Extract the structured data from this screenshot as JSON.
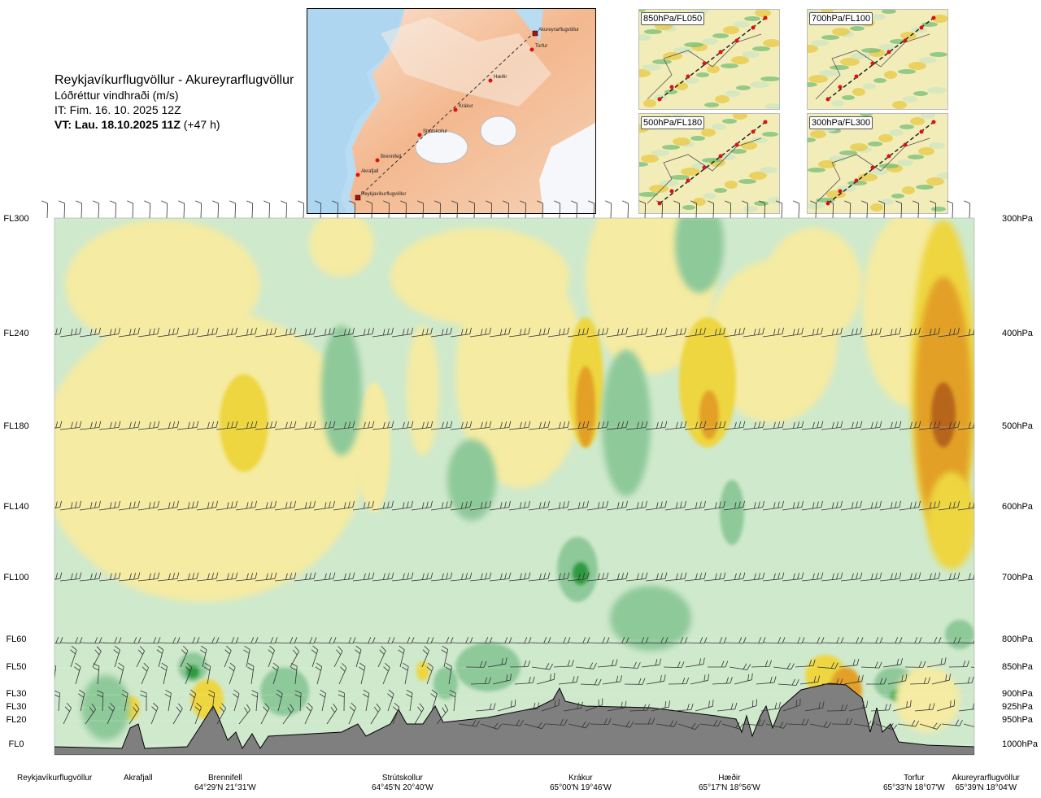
{
  "header": {
    "route": "Reykjavíkurflugvöllur - Akureyrarflugvöllur",
    "variable": "Lóðréttur vindhraði (m/s)",
    "issue_time": "IT: Fim. 16. 10. 2025 12Z",
    "valid_time": "VT: Lau. 18.10.2025 11Z",
    "lead_time": "(+47 h)"
  },
  "map": {
    "waypoints": [
      "Akureyrarflugvöllur",
      "Torfur",
      "Hæðir",
      "Krákur",
      "Strútskollur",
      "Brennifell",
      "Akrafjall",
      "Reykjavíkurflugvöllur"
    ]
  },
  "thumbnails": [
    {
      "label": "850hPa/FL050"
    },
    {
      "label": "700hPa/FL100"
    },
    {
      "label": "500hPa/FL180"
    },
    {
      "label": "300hPa/FL300"
    }
  ],
  "chart_data": {
    "type": "heatmap",
    "title": "Reykjavíkurflugvöllur - Akureyrarflugvöllur",
    "subtitle": "Lóðréttur vindhraði (m/s)",
    "left_axis_ticks": [
      "FL300",
      "FL240",
      "FL180",
      "FL140",
      "FL100",
      "FL60",
      "FL50",
      "FL30",
      "FL30",
      "FL20",
      "FL0"
    ],
    "right_axis_ticks": [
      "300hPa",
      "400hPa",
      "500hPa",
      "600hPa",
      "700hPa",
      "800hPa",
      "850hPa",
      "900hPa",
      "925hPa",
      "950hPa",
      "1000hPa"
    ],
    "pressure_levels": [
      300,
      400,
      500,
      600,
      700,
      800,
      850,
      900,
      925,
      950,
      1000
    ],
    "stations": [
      {
        "name": "Reykjavíkurflugvöllur",
        "coord": ""
      },
      {
        "name": "Akrafjall",
        "coord": ""
      },
      {
        "name": "Brennifell",
        "coord": "64°29'N 21°31'W"
      },
      {
        "name": "Strútskollur",
        "coord": "64°45'N 20°40'W"
      },
      {
        "name": "Krákur",
        "coord": "65°00'N 19°46'W"
      },
      {
        "name": "Hæðir",
        "coord": "65°17'N 18°56'W"
      },
      {
        "name": "Torfur",
        "coord": "65°33'N 18°07'W"
      },
      {
        "name": "Akureyrarflugvöllur",
        "coord": "65°39'N 18°04'W"
      }
    ],
    "colors": {
      "strong_down": "#2f9a3f",
      "moderate_down": "#8ec99a",
      "weak_down": "#cfe9cc",
      "neutral": "#fbfbe8",
      "weak_up": "#f5eba2",
      "moderate_up": "#eed640",
      "strong_up": "#e2a027",
      "very_strong_up": "#b8651b",
      "terrain": "#7f7f7f"
    },
    "grid": true
  }
}
